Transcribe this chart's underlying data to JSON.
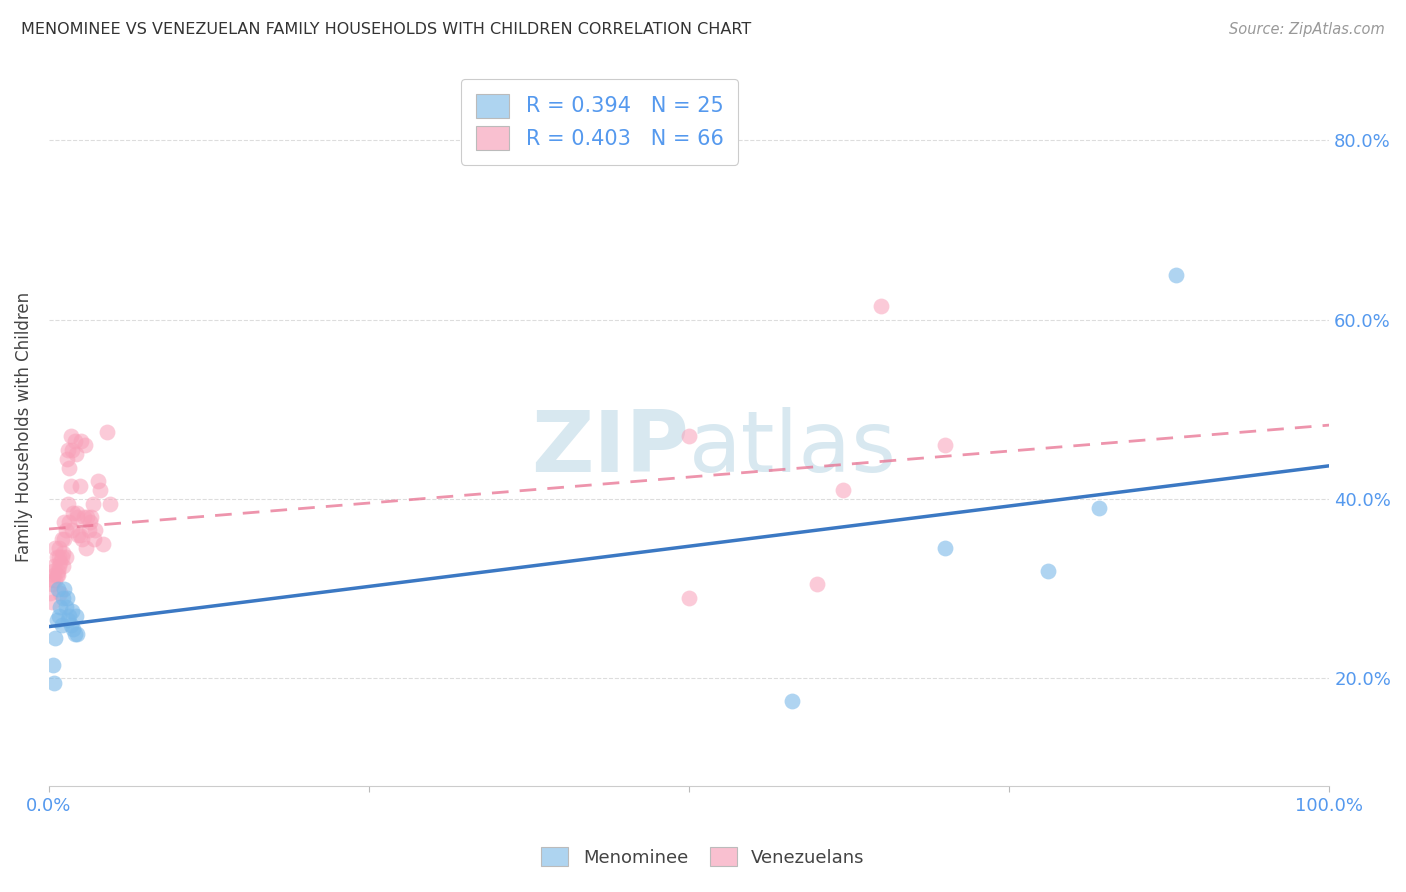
{
  "title": "MENOMINEE VS VENEZUELAN FAMILY HOUSEHOLDS WITH CHILDREN CORRELATION CHART",
  "source": "Source: ZipAtlas.com",
  "ylabel": "Family Households with Children",
  "xlim": [
    0.0,
    1.0
  ],
  "ylim": [
    0.08,
    0.88
  ],
  "ytick_positions": [
    0.2,
    0.4,
    0.6,
    0.8
  ],
  "ytick_labels": [
    "20.0%",
    "40.0%",
    "60.0%",
    "80.0%"
  ],
  "xtick_positions": [
    0.0,
    0.25,
    0.5,
    0.75,
    1.0
  ],
  "xtick_labels": [
    "0.0%",
    "",
    "",
    "",
    "100.0%"
  ],
  "menominee_color": "#7ab8e8",
  "venezuelan_color": "#f8a0b8",
  "menominee_line_color": "#3b78c3",
  "venezuelan_line_color": "#e87090",
  "legend_men_color": "#aed4f0",
  "legend_ven_color": "#f9c0d0",
  "R_menominee": 0.394,
  "N_menominee": 25,
  "R_venezuelan": 0.403,
  "N_venezuelan": 66,
  "tick_color": "#5599ee",
  "grid_color": "#dddddd",
  "watermark_color": "#d8e8f0",
  "menominee_x": [
    0.003,
    0.004,
    0.005,
    0.006,
    0.007,
    0.008,
    0.009,
    0.01,
    0.011,
    0.012,
    0.013,
    0.014,
    0.015,
    0.016,
    0.017,
    0.018,
    0.019,
    0.02,
    0.021,
    0.022,
    0.58,
    0.7,
    0.78,
    0.82,
    0.88
  ],
  "menominee_y": [
    0.215,
    0.195,
    0.245,
    0.265,
    0.3,
    0.27,
    0.28,
    0.26,
    0.29,
    0.3,
    0.28,
    0.29,
    0.265,
    0.27,
    0.26,
    0.275,
    0.255,
    0.25,
    0.27,
    0.25,
    0.175,
    0.345,
    0.32,
    0.39,
    0.65
  ],
  "venezuelan_x": [
    0.001,
    0.002,
    0.002,
    0.003,
    0.003,
    0.004,
    0.004,
    0.005,
    0.005,
    0.006,
    0.006,
    0.007,
    0.007,
    0.008,
    0.008,
    0.008,
    0.009,
    0.009,
    0.01,
    0.01,
    0.011,
    0.011,
    0.012,
    0.012,
    0.013,
    0.013,
    0.014,
    0.015,
    0.015,
    0.016,
    0.016,
    0.017,
    0.017,
    0.018,
    0.018,
    0.019,
    0.02,
    0.021,
    0.022,
    0.022,
    0.023,
    0.024,
    0.024,
    0.025,
    0.026,
    0.027,
    0.028,
    0.029,
    0.03,
    0.031,
    0.032,
    0.033,
    0.034,
    0.035,
    0.036,
    0.038,
    0.04,
    0.042,
    0.045,
    0.048,
    0.5,
    0.5,
    0.6,
    0.62,
    0.65,
    0.7
  ],
  "venezuelan_y": [
    0.295,
    0.305,
    0.285,
    0.32,
    0.31,
    0.315,
    0.325,
    0.345,
    0.31,
    0.315,
    0.335,
    0.315,
    0.32,
    0.335,
    0.345,
    0.325,
    0.33,
    0.295,
    0.335,
    0.355,
    0.34,
    0.325,
    0.355,
    0.375,
    0.365,
    0.335,
    0.445,
    0.455,
    0.395,
    0.435,
    0.375,
    0.415,
    0.47,
    0.365,
    0.455,
    0.385,
    0.465,
    0.45,
    0.385,
    0.38,
    0.36,
    0.36,
    0.415,
    0.465,
    0.355,
    0.38,
    0.46,
    0.345,
    0.38,
    0.365,
    0.375,
    0.38,
    0.395,
    0.355,
    0.365,
    0.42,
    0.41,
    0.35,
    0.475,
    0.395,
    0.29,
    0.47,
    0.305,
    0.41,
    0.615,
    0.46
  ]
}
